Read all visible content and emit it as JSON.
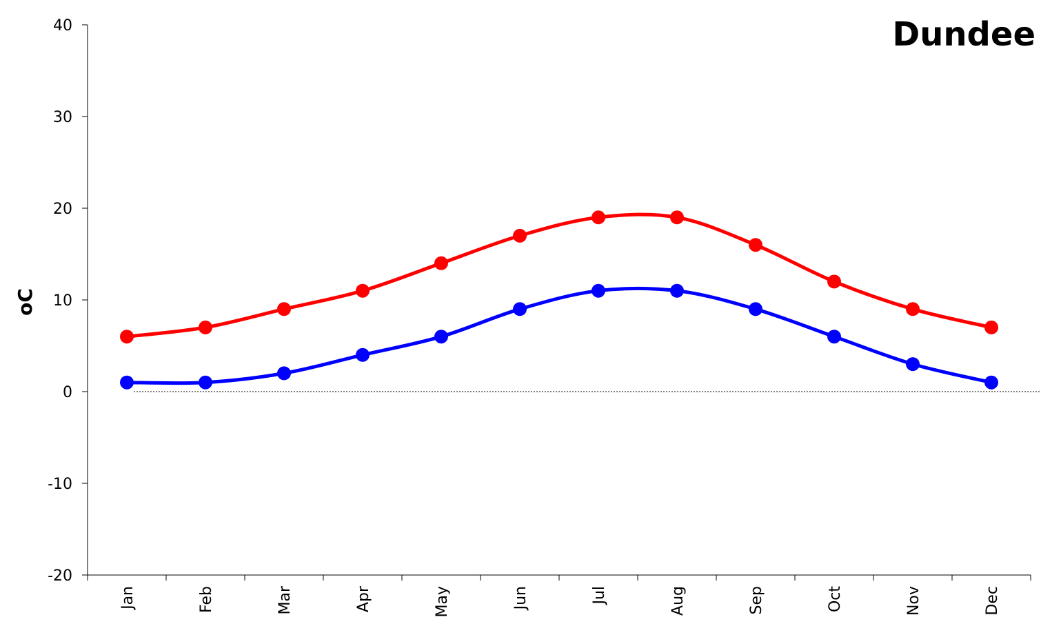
{
  "chart_data": {
    "type": "line",
    "title": "Dundee",
    "ylabel": "oC",
    "xlabel": "",
    "categories": [
      "Jan",
      "Feb",
      "Mar",
      "Apr",
      "May",
      "Jun",
      "Jul",
      "Aug",
      "Sep",
      "Oct",
      "Nov",
      "Dec"
    ],
    "ylim": [
      -20,
      40
    ],
    "yticks": [
      40,
      30,
      20,
      10,
      0,
      -10,
      -20
    ],
    "series": [
      {
        "values": [
          6,
          7,
          9,
          11,
          14,
          17,
          19,
          19,
          16,
          12,
          9,
          7
        ],
        "color": "#ff0000"
      },
      {
        "values": [
          1,
          1,
          2,
          4,
          6,
          9,
          11,
          11,
          9,
          6,
          3,
          1
        ],
        "color": "#0000ff"
      }
    ],
    "zero_line": "dotted",
    "grid": false,
    "legend": "none"
  }
}
